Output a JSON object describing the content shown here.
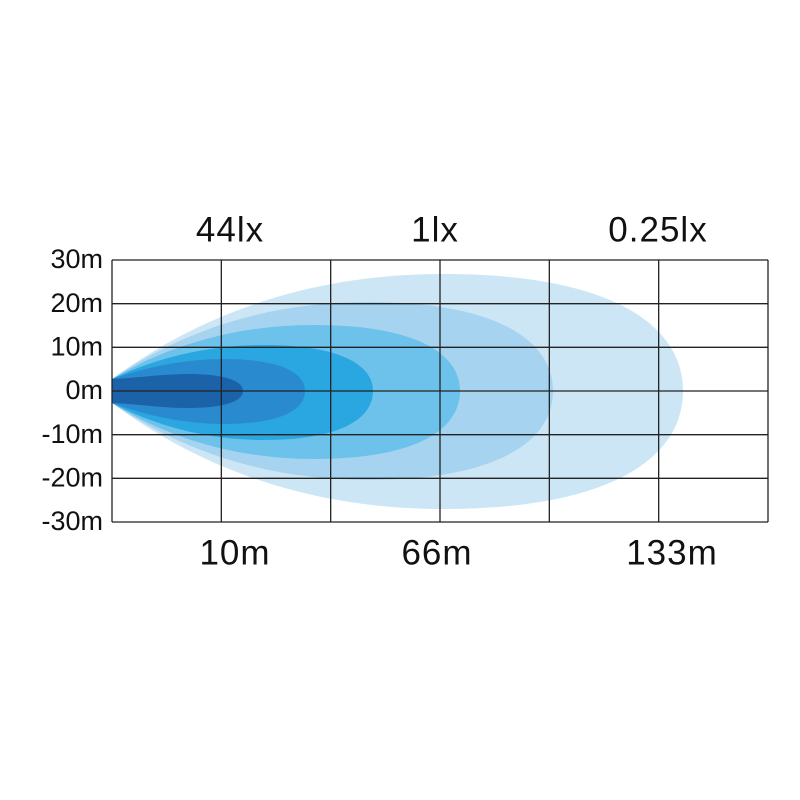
{
  "top_labels": [
    "44lx",
    "1lx",
    "0.25lx"
  ],
  "y_labels": [
    "30m",
    "20m",
    "10m",
    "0m",
    "-10m",
    "-20m",
    "-30m"
  ],
  "x_labels": [
    "10m",
    "66m",
    "133m"
  ]
}
